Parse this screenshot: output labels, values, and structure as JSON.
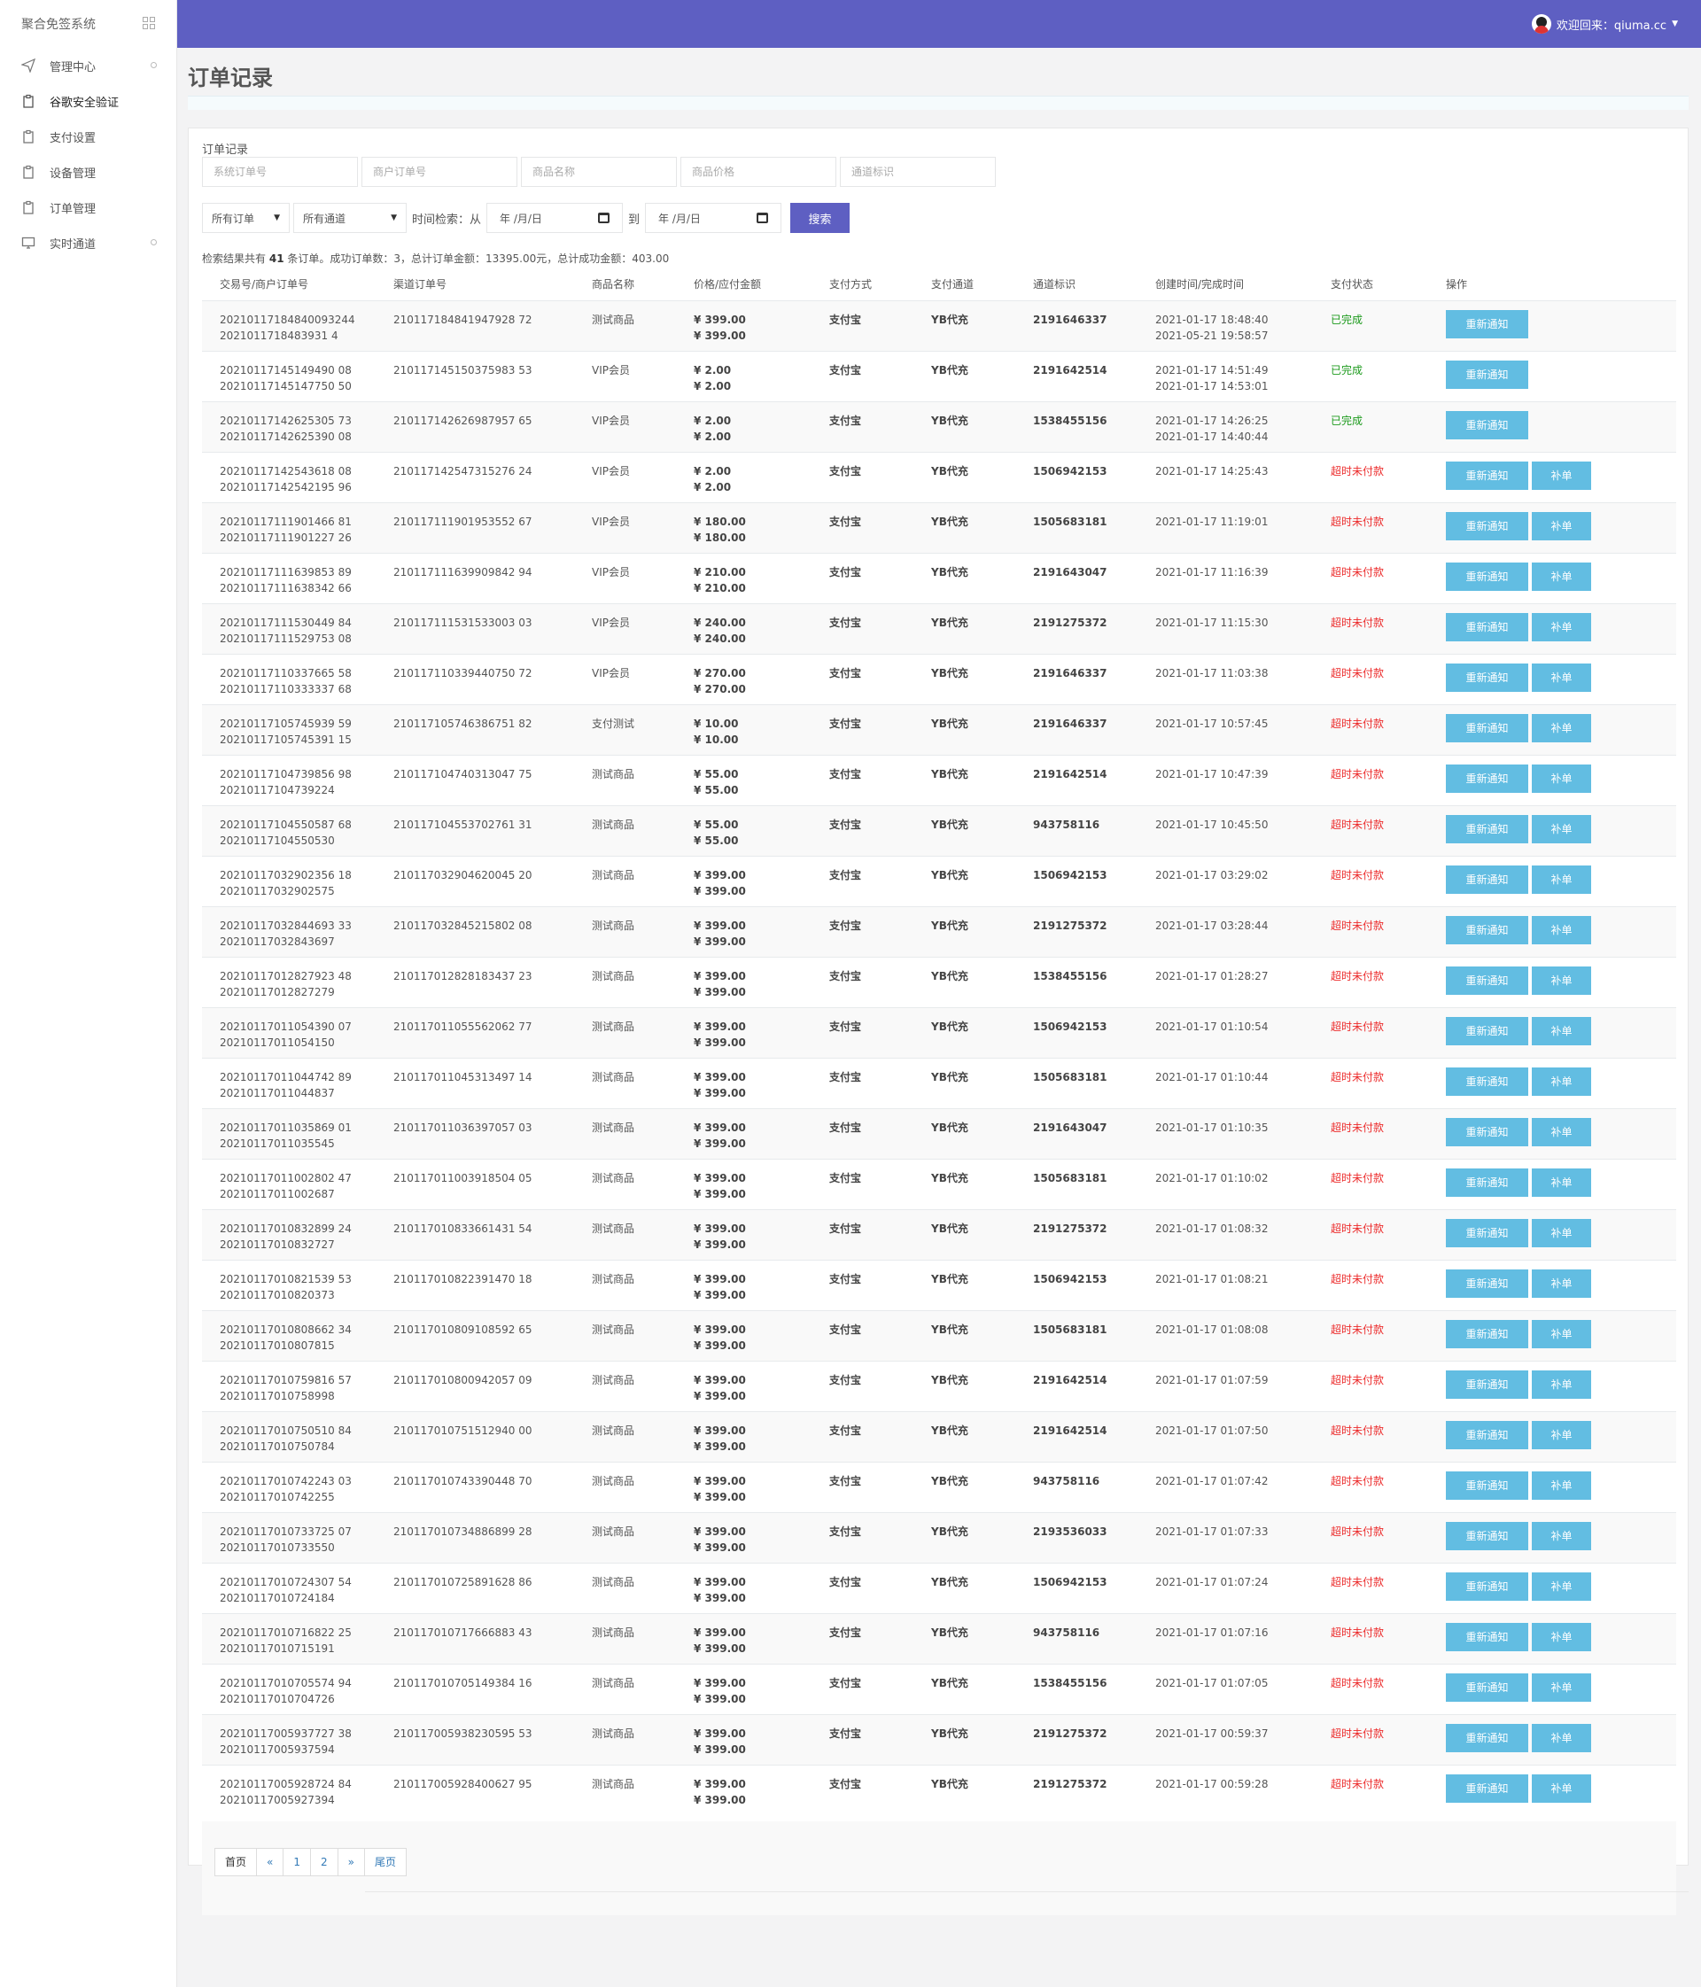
{
  "sidebar": {
    "brand": "聚合免签系统",
    "items": [
      {
        "label": "管理中心",
        "icon": "send-icon"
      },
      {
        "label": "谷歌安全验证",
        "icon": "clipboard-icon"
      },
      {
        "label": "支付设置",
        "icon": "clipboard-icon"
      },
      {
        "label": "设备管理",
        "icon": "clipboard-icon"
      },
      {
        "label": "订单管理",
        "icon": "clipboard-icon"
      },
      {
        "label": "实时通道",
        "icon": "monitor-icon"
      }
    ]
  },
  "header": {
    "greeting": "欢迎回来：qiuma.cc",
    "accent": "#5e5fc2"
  },
  "page_title": "订单记录",
  "filters": {
    "label": "订单记录",
    "system_order_placeholder": "系统订单号",
    "merchant_order_placeholder": "商户订单号",
    "product_name_placeholder": "商品名称",
    "product_price_placeholder": "商品价格",
    "channel_id_placeholder": "通道标识",
    "order_type": "所有订单",
    "channel": "所有通道",
    "time_label": "时间检索：从",
    "date_from": "年 /月/日",
    "to_label": "到",
    "date_to": "年 /月/日",
    "search_label": "搜索"
  },
  "summary": {
    "prefix": "检索结果共有",
    "count": "41",
    "rest": "条订单。成功订单数：3，总计订单金额：13395.00元，总计成功金额：403.00"
  },
  "table": {
    "headers": [
      "交易号/商户订单号",
      "渠道订单号",
      "商品名称",
      "价格/应付金额",
      "支付方式",
      "支付通道",
      "通道标识",
      "创建时间/完成时间",
      "支付状态",
      "操作"
    ],
    "notify_label": "重新通知",
    "fix_label": "补单",
    "rows": [
      {
        "trade_no": "20210117184840093244",
        "merchant_no": "2021011718483931 4",
        "channel_no": "210117184841947928 72",
        "product": "测试商品",
        "price": "¥ 399.00",
        "pay": "¥ 399.00",
        "method": "支付宝",
        "gateway": "YB代充",
        "channel_id": "2191646337",
        "created": "2021-01-17 18:48:40",
        "finished": "2021-05-21 19:58:57",
        "status": "已完成",
        "ok": true
      },
      {
        "trade_no": "20210117145149490 08",
        "merchant_no": "20210117145147750 50",
        "channel_no": "210117145150375983 53",
        "product": "VIP会员",
        "price": "¥ 2.00",
        "pay": "¥ 2.00",
        "method": "支付宝",
        "gateway": "YB代充",
        "channel_id": "2191642514",
        "created": "2021-01-17 14:51:49",
        "finished": "2021-01-17 14:53:01",
        "status": "已完成",
        "ok": true
      },
      {
        "trade_no": "20210117142625305 73",
        "merchant_no": "20210117142625390 08",
        "channel_no": "210117142626987957 65",
        "product": "VIP会员",
        "price": "¥ 2.00",
        "pay": "¥ 2.00",
        "method": "支付宝",
        "gateway": "YB代充",
        "channel_id": "1538455156",
        "created": "2021-01-17 14:26:25",
        "finished": "2021-01-17 14:40:44",
        "status": "已完成",
        "ok": true
      },
      {
        "trade_no": "20210117142543618 08",
        "merchant_no": "20210117142542195 96",
        "channel_no": "210117142547315276 24",
        "product": "VIP会员",
        "price": "¥ 2.00",
        "pay": "¥ 2.00",
        "method": "支付宝",
        "gateway": "YB代充",
        "channel_id": "1506942153",
        "created": "2021-01-17 14:25:43",
        "finished": "",
        "status": "超时未付款",
        "ok": false
      },
      {
        "trade_no": "20210117111901466 81",
        "merchant_no": "20210117111901227 26",
        "channel_no": "210117111901953552 67",
        "product": "VIP会员",
        "price": "¥ 180.00",
        "pay": "¥ 180.00",
        "method": "支付宝",
        "gateway": "YB代充",
        "channel_id": "1505683181",
        "created": "2021-01-17 11:19:01",
        "finished": "",
        "status": "超时未付款",
        "ok": false
      },
      {
        "trade_no": "20210117111639853 89",
        "merchant_no": "20210117111638342 66",
        "channel_no": "210117111639909842 94",
        "product": "VIP会员",
        "price": "¥ 210.00",
        "pay": "¥ 210.00",
        "method": "支付宝",
        "gateway": "YB代充",
        "channel_id": "2191643047",
        "created": "2021-01-17 11:16:39",
        "finished": "",
        "status": "超时未付款",
        "ok": false
      },
      {
        "trade_no": "20210117111530449 84",
        "merchant_no": "20210117111529753 08",
        "channel_no": "210117111531533003 03",
        "product": "VIP会员",
        "price": "¥ 240.00",
        "pay": "¥ 240.00",
        "method": "支付宝",
        "gateway": "YB代充",
        "channel_id": "2191275372",
        "created": "2021-01-17 11:15:30",
        "finished": "",
        "status": "超时未付款",
        "ok": false
      },
      {
        "trade_no": "20210117110337665 58",
        "merchant_no": "20210117110333337 68",
        "channel_no": "210117110339440750 72",
        "product": "VIP会员",
        "price": "¥ 270.00",
        "pay": "¥ 270.00",
        "method": "支付宝",
        "gateway": "YB代充",
        "channel_id": "2191646337",
        "created": "2021-01-17 11:03:38",
        "finished": "",
        "status": "超时未付款",
        "ok": false
      },
      {
        "trade_no": "20210117105745939 59",
        "merchant_no": "20210117105745391 15",
        "channel_no": "210117105746386751 82",
        "product": "支付测试",
        "price": "¥ 10.00",
        "pay": "¥ 10.00",
        "method": "支付宝",
        "gateway": "YB代充",
        "channel_id": "2191646337",
        "created": "2021-01-17 10:57:45",
        "finished": "",
        "status": "超时未付款",
        "ok": false
      },
      {
        "trade_no": "20210117104739856 98",
        "merchant_no": "20210117104739224",
        "channel_no": "210117104740313047 75",
        "product": "测试商品",
        "price": "¥ 55.00",
        "pay": "¥ 55.00",
        "method": "支付宝",
        "gateway": "YB代充",
        "channel_id": "2191642514",
        "created": "2021-01-17 10:47:39",
        "finished": "",
        "status": "超时未付款",
        "ok": false
      },
      {
        "trade_no": "20210117104550587 68",
        "merchant_no": "20210117104550530",
        "channel_no": "210117104553702761 31",
        "product": "测试商品",
        "price": "¥ 55.00",
        "pay": "¥ 55.00",
        "method": "支付宝",
        "gateway": "YB代充",
        "channel_id": "943758116",
        "created": "2021-01-17 10:45:50",
        "finished": "",
        "status": "超时未付款",
        "ok": false
      },
      {
        "trade_no": "20210117032902356 18",
        "merchant_no": "20210117032902575",
        "channel_no": "210117032904620045 20",
        "product": "测试商品",
        "price": "¥ 399.00",
        "pay": "¥ 399.00",
        "method": "支付宝",
        "gateway": "YB代充",
        "channel_id": "1506942153",
        "created": "2021-01-17 03:29:02",
        "finished": "",
        "status": "超时未付款",
        "ok": false
      },
      {
        "trade_no": "20210117032844693 33",
        "merchant_no": "20210117032843697",
        "channel_no": "210117032845215802 08",
        "product": "测试商品",
        "price": "¥ 399.00",
        "pay": "¥ 399.00",
        "method": "支付宝",
        "gateway": "YB代充",
        "channel_id": "2191275372",
        "created": "2021-01-17 03:28:44",
        "finished": "",
        "status": "超时未付款",
        "ok": false
      },
      {
        "trade_no": "20210117012827923 48",
        "merchant_no": "20210117012827279",
        "channel_no": "210117012828183437 23",
        "product": "测试商品",
        "price": "¥ 399.00",
        "pay": "¥ 399.00",
        "method": "支付宝",
        "gateway": "YB代充",
        "channel_id": "1538455156",
        "created": "2021-01-17 01:28:27",
        "finished": "",
        "status": "超时未付款",
        "ok": false
      },
      {
        "trade_no": "20210117011054390 07",
        "merchant_no": "20210117011054150",
        "channel_no": "210117011055562062 77",
        "product": "测试商品",
        "price": "¥ 399.00",
        "pay": "¥ 399.00",
        "method": "支付宝",
        "gateway": "YB代充",
        "channel_id": "1506942153",
        "created": "2021-01-17 01:10:54",
        "finished": "",
        "status": "超时未付款",
        "ok": false
      },
      {
        "trade_no": "20210117011044742 89",
        "merchant_no": "20210117011044837",
        "channel_no": "210117011045313497 14",
        "product": "测试商品",
        "price": "¥ 399.00",
        "pay": "¥ 399.00",
        "method": "支付宝",
        "gateway": "YB代充",
        "channel_id": "1505683181",
        "created": "2021-01-17 01:10:44",
        "finished": "",
        "status": "超时未付款",
        "ok": false
      },
      {
        "trade_no": "20210117011035869 01",
        "merchant_no": "20210117011035545",
        "channel_no": "210117011036397057 03",
        "product": "测试商品",
        "price": "¥ 399.00",
        "pay": "¥ 399.00",
        "method": "支付宝",
        "gateway": "YB代充",
        "channel_id": "2191643047",
        "created": "2021-01-17 01:10:35",
        "finished": "",
        "status": "超时未付款",
        "ok": false
      },
      {
        "trade_no": "20210117011002802 47",
        "merchant_no": "20210117011002687",
        "channel_no": "210117011003918504 05",
        "product": "测试商品",
        "price": "¥ 399.00",
        "pay": "¥ 399.00",
        "method": "支付宝",
        "gateway": "YB代充",
        "channel_id": "1505683181",
        "created": "2021-01-17 01:10:02",
        "finished": "",
        "status": "超时未付款",
        "ok": false
      },
      {
        "trade_no": "20210117010832899 24",
        "merchant_no": "20210117010832727",
        "channel_no": "210117010833661431 54",
        "product": "测试商品",
        "price": "¥ 399.00",
        "pay": "¥ 399.00",
        "method": "支付宝",
        "gateway": "YB代充",
        "channel_id": "2191275372",
        "created": "2021-01-17 01:08:32",
        "finished": "",
        "status": "超时未付款",
        "ok": false
      },
      {
        "trade_no": "20210117010821539 53",
        "merchant_no": "20210117010820373",
        "channel_no": "210117010822391470 18",
        "product": "测试商品",
        "price": "¥ 399.00",
        "pay": "¥ 399.00",
        "method": "支付宝",
        "gateway": "YB代充",
        "channel_id": "1506942153",
        "created": "2021-01-17 01:08:21",
        "finished": "",
        "status": "超时未付款",
        "ok": false
      },
      {
        "trade_no": "20210117010808662 34",
        "merchant_no": "20210117010807815",
        "channel_no": "210117010809108592 65",
        "product": "测试商品",
        "price": "¥ 399.00",
        "pay": "¥ 399.00",
        "method": "支付宝",
        "gateway": "YB代充",
        "channel_id": "1505683181",
        "created": "2021-01-17 01:08:08",
        "finished": "",
        "status": "超时未付款",
        "ok": false
      },
      {
        "trade_no": "20210117010759816 57",
        "merchant_no": "20210117010758998",
        "channel_no": "210117010800942057 09",
        "product": "测试商品",
        "price": "¥ 399.00",
        "pay": "¥ 399.00",
        "method": "支付宝",
        "gateway": "YB代充",
        "channel_id": "2191642514",
        "created": "2021-01-17 01:07:59",
        "finished": "",
        "status": "超时未付款",
        "ok": false
      },
      {
        "trade_no": "20210117010750510 84",
        "merchant_no": "20210117010750784",
        "channel_no": "210117010751512940 00",
        "product": "测试商品",
        "price": "¥ 399.00",
        "pay": "¥ 399.00",
        "method": "支付宝",
        "gateway": "YB代充",
        "channel_id": "2191642514",
        "created": "2021-01-17 01:07:50",
        "finished": "",
        "status": "超时未付款",
        "ok": false
      },
      {
        "trade_no": "20210117010742243 03",
        "merchant_no": "20210117010742255",
        "channel_no": "210117010743390448 70",
        "product": "测试商品",
        "price": "¥ 399.00",
        "pay": "¥ 399.00",
        "method": "支付宝",
        "gateway": "YB代充",
        "channel_id": "943758116",
        "created": "2021-01-17 01:07:42",
        "finished": "",
        "status": "超时未付款",
        "ok": false
      },
      {
        "trade_no": "20210117010733725 07",
        "merchant_no": "20210117010733550",
        "channel_no": "210117010734886899 28",
        "product": "测试商品",
        "price": "¥ 399.00",
        "pay": "¥ 399.00",
        "method": "支付宝",
        "gateway": "YB代充",
        "channel_id": "2193536033",
        "created": "2021-01-17 01:07:33",
        "finished": "",
        "status": "超时未付款",
        "ok": false
      },
      {
        "trade_no": "20210117010724307 54",
        "merchant_no": "20210117010724184",
        "channel_no": "210117010725891628 86",
        "product": "测试商品",
        "price": "¥ 399.00",
        "pay": "¥ 399.00",
        "method": "支付宝",
        "gateway": "YB代充",
        "channel_id": "1506942153",
        "created": "2021-01-17 01:07:24",
        "finished": "",
        "status": "超时未付款",
        "ok": false
      },
      {
        "trade_no": "20210117010716822 25",
        "merchant_no": "20210117010715191",
        "channel_no": "210117010717666883 43",
        "product": "测试商品",
        "price": "¥ 399.00",
        "pay": "¥ 399.00",
        "method": "支付宝",
        "gateway": "YB代充",
        "channel_id": "943758116",
        "created": "2021-01-17 01:07:16",
        "finished": "",
        "status": "超时未付款",
        "ok": false
      },
      {
        "trade_no": "20210117010705574 94",
        "merchant_no": "20210117010704726",
        "channel_no": "210117010705149384 16",
        "product": "测试商品",
        "price": "¥ 399.00",
        "pay": "¥ 399.00",
        "method": "支付宝",
        "gateway": "YB代充",
        "channel_id": "1538455156",
        "created": "2021-01-17 01:07:05",
        "finished": "",
        "status": "超时未付款",
        "ok": false
      },
      {
        "trade_no": "20210117005937727 38",
        "merchant_no": "20210117005937594",
        "channel_no": "210117005938230595 53",
        "product": "测试商品",
        "price": "¥ 399.00",
        "pay": "¥ 399.00",
        "method": "支付宝",
        "gateway": "YB代充",
        "channel_id": "2191275372",
        "created": "2021-01-17 00:59:37",
        "finished": "",
        "status": "超时未付款",
        "ok": false
      },
      {
        "trade_no": "20210117005928724 84",
        "merchant_no": "20210117005927394",
        "channel_no": "210117005928400627 95",
        "product": "测试商品",
        "price": "¥ 399.00",
        "pay": "¥ 399.00",
        "method": "支付宝",
        "gateway": "YB代充",
        "channel_id": "2191275372",
        "created": "2021-01-17 00:59:28",
        "finished": "",
        "status": "超时未付款",
        "ok": false
      }
    ]
  },
  "pagination": {
    "first": "首页",
    "prev": "«",
    "pages": [
      "1",
      "2"
    ],
    "next": "»",
    "last": "尾页"
  }
}
